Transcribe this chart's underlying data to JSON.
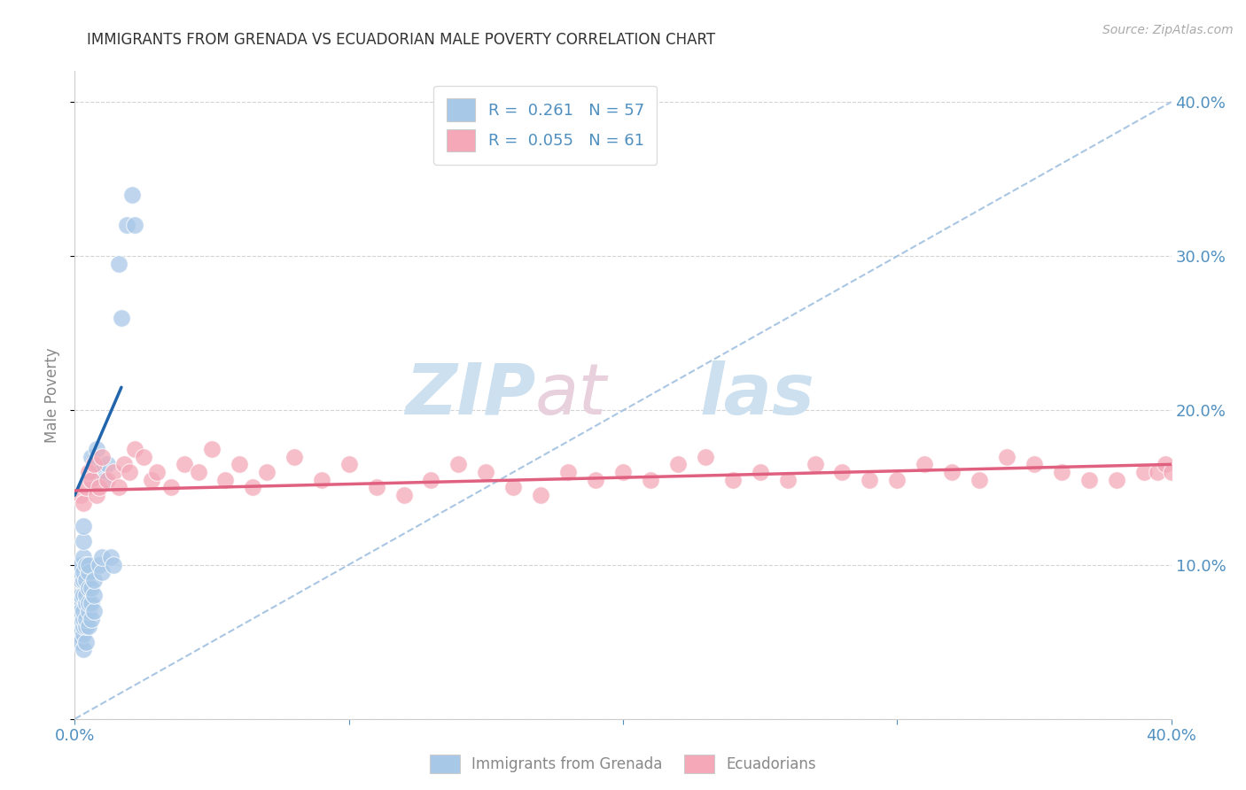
{
  "title": "IMMIGRANTS FROM GRENADA VS ECUADORIAN MALE POVERTY CORRELATION CHART",
  "source": "Source: ZipAtlas.com",
  "ylabel_left": "Male Poverty",
  "xmin": 0.0,
  "xmax": 0.4,
  "ymin": 0.0,
  "ymax": 0.42,
  "blue_R": 0.261,
  "blue_N": 57,
  "pink_R": 0.055,
  "pink_N": 61,
  "blue_color": "#a8c8e8",
  "pink_color": "#f4a8b8",
  "blue_line_color": "#2166ac",
  "pink_line_color": "#e06080",
  "ref_line_color": "#a0c0e0",
  "legend_label_blue": "Immigrants from Grenada",
  "legend_label_pink": "Ecuadorians",
  "blue_scatter_x": [
    0.001,
    0.001,
    0.001,
    0.002,
    0.002,
    0.002,
    0.002,
    0.002,
    0.002,
    0.002,
    0.003,
    0.003,
    0.003,
    0.003,
    0.003,
    0.003,
    0.003,
    0.003,
    0.003,
    0.003,
    0.003,
    0.004,
    0.004,
    0.004,
    0.004,
    0.004,
    0.004,
    0.004,
    0.005,
    0.005,
    0.005,
    0.005,
    0.005,
    0.005,
    0.006,
    0.006,
    0.006,
    0.006,
    0.006,
    0.007,
    0.007,
    0.007,
    0.008,
    0.008,
    0.009,
    0.009,
    0.01,
    0.01,
    0.011,
    0.012,
    0.013,
    0.014,
    0.016,
    0.017,
    0.019,
    0.021,
    0.022
  ],
  "blue_scatter_y": [
    0.055,
    0.075,
    0.06,
    0.05,
    0.065,
    0.07,
    0.08,
    0.09,
    0.095,
    0.1,
    0.045,
    0.055,
    0.06,
    0.065,
    0.07,
    0.08,
    0.09,
    0.095,
    0.105,
    0.115,
    0.125,
    0.05,
    0.06,
    0.065,
    0.075,
    0.08,
    0.09,
    0.1,
    0.06,
    0.07,
    0.075,
    0.085,
    0.095,
    0.1,
    0.065,
    0.075,
    0.085,
    0.155,
    0.17,
    0.07,
    0.08,
    0.09,
    0.165,
    0.175,
    0.1,
    0.16,
    0.095,
    0.105,
    0.155,
    0.165,
    0.105,
    0.1,
    0.295,
    0.26,
    0.32,
    0.34,
    0.32
  ],
  "pink_scatter_x": [
    0.002,
    0.003,
    0.004,
    0.005,
    0.006,
    0.007,
    0.008,
    0.009,
    0.01,
    0.012,
    0.014,
    0.016,
    0.018,
    0.02,
    0.022,
    0.025,
    0.028,
    0.03,
    0.035,
    0.04,
    0.045,
    0.05,
    0.055,
    0.06,
    0.065,
    0.07,
    0.08,
    0.09,
    0.1,
    0.11,
    0.12,
    0.13,
    0.14,
    0.15,
    0.16,
    0.17,
    0.18,
    0.19,
    0.2,
    0.21,
    0.22,
    0.23,
    0.24,
    0.25,
    0.26,
    0.27,
    0.28,
    0.29,
    0.3,
    0.31,
    0.32,
    0.33,
    0.34,
    0.35,
    0.36,
    0.37,
    0.38,
    0.39,
    0.395,
    0.398,
    0.4
  ],
  "pink_scatter_y": [
    0.145,
    0.14,
    0.15,
    0.16,
    0.155,
    0.165,
    0.145,
    0.15,
    0.17,
    0.155,
    0.16,
    0.15,
    0.165,
    0.16,
    0.175,
    0.17,
    0.155,
    0.16,
    0.15,
    0.165,
    0.16,
    0.175,
    0.155,
    0.165,
    0.15,
    0.16,
    0.17,
    0.155,
    0.165,
    0.15,
    0.145,
    0.155,
    0.165,
    0.16,
    0.15,
    0.145,
    0.16,
    0.155,
    0.16,
    0.155,
    0.165,
    0.17,
    0.155,
    0.16,
    0.155,
    0.165,
    0.16,
    0.155,
    0.155,
    0.165,
    0.16,
    0.155,
    0.17,
    0.165,
    0.16,
    0.155,
    0.155,
    0.16,
    0.16,
    0.165,
    0.16
  ],
  "blue_trend_x": [
    0.0,
    0.017
  ],
  "blue_trend_y": [
    0.145,
    0.215
  ],
  "pink_trend_x": [
    0.0,
    0.4
  ],
  "pink_trend_y": [
    0.148,
    0.165
  ],
  "background_color": "#ffffff",
  "grid_color": "#d0d0d0",
  "tick_label_color": "#5090c0",
  "watermark_color": "#cce0f0",
  "axis_label_color": "#888888"
}
